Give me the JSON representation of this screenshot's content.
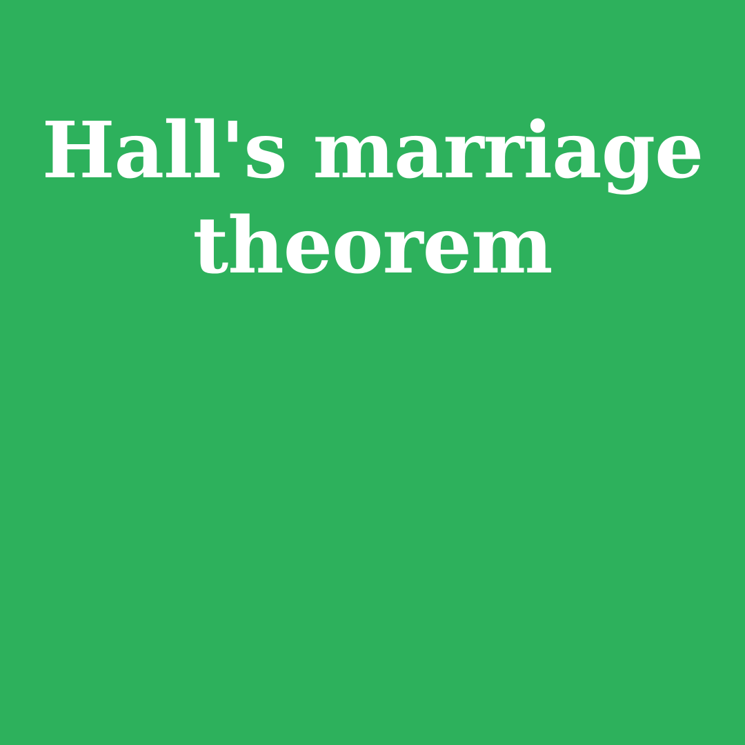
{
  "page": {
    "background_color": "#2db15c",
    "text_color": "#ffffff"
  },
  "title": {
    "line1": "Hall's marriage",
    "line2": "theorem"
  }
}
